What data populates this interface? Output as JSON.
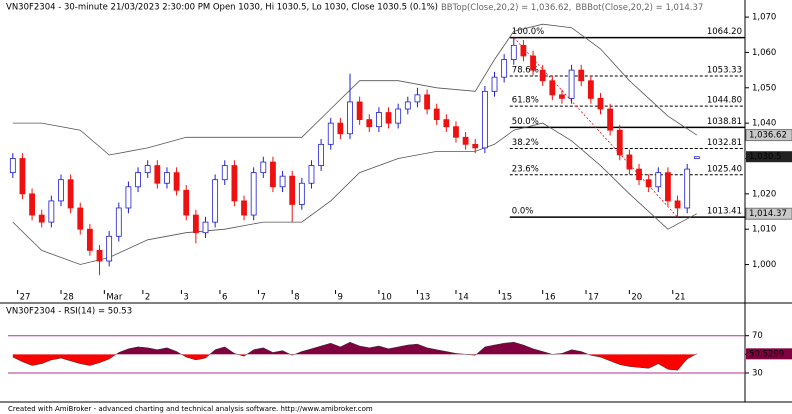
{
  "chart_data": [
    {
      "type": "candlestick",
      "title": "VN30F2304 - 30-minute 21/03/2023 2:30:00 PM Open 1030, Hi 1030.5, Lo 1030, Close 1030.5 (0.1%)",
      "x": [
        0,
        1,
        2,
        3,
        4,
        5,
        6,
        7,
        8,
        9,
        10,
        11,
        12,
        13,
        14,
        15,
        16,
        17,
        18,
        19,
        20,
        21,
        22,
        23,
        24,
        25,
        26,
        27,
        28,
        29,
        30,
        31,
        32,
        33,
        34,
        35,
        36,
        37,
        38,
        39,
        40,
        41,
        42,
        43,
        44,
        45,
        46,
        47,
        48,
        49,
        50,
        51,
        52,
        53,
        54,
        55,
        56,
        57,
        58,
        59,
        60,
        61,
        62,
        63,
        64,
        65,
        66,
        67,
        68,
        69,
        70,
        71
      ],
      "open": [
        1026,
        1030,
        1020,
        1014,
        1012,
        1018,
        1024,
        1016,
        1010,
        1004,
        1001,
        1008,
        1016,
        1022,
        1026,
        1028,
        1023,
        1026,
        1021,
        1014,
        1009,
        1012,
        1024,
        1028,
        1018,
        1014,
        1026,
        1029,
        1022,
        1025,
        1017,
        1023,
        1028,
        1034,
        1040,
        1037,
        1046,
        1041,
        1039,
        1043,
        1040,
        1044,
        1046,
        1048,
        1044,
        1041,
        1039,
        1036,
        1034,
        1033,
        1049,
        1053,
        1058,
        1062,
        1059,
        1055,
        1052,
        1048,
        1047,
        1055,
        1052,
        1047,
        1044,
        1038,
        1031,
        1027,
        1024,
        1022,
        1026,
        1018,
        1016,
        1030
      ],
      "high": [
        1031.5,
        1031.5,
        1021.5,
        1015.5,
        1019.5,
        1025.5,
        1025.5,
        1017.5,
        1011.5,
        1005.5,
        1009.5,
        1017.5,
        1023.5,
        1027.5,
        1029.5,
        1029.5,
        1027.5,
        1027.5,
        1022.5,
        1015.5,
        1013.5,
        1025.5,
        1029.5,
        1029.5,
        1019.5,
        1027.5,
        1030.5,
        1030.5,
        1026.5,
        1026.5,
        1024.5,
        1029.5,
        1035.5,
        1041.5,
        1041.5,
        1054,
        1047.5,
        1042.5,
        1044.5,
        1044.5,
        1045.5,
        1047.5,
        1050,
        1049.5,
        1045.5,
        1042.5,
        1040.5,
        1037.5,
        1035.5,
        1050.5,
        1054.5,
        1059.5,
        1064.2,
        1063.5,
        1060.5,
        1056.5,
        1053.5,
        1049.5,
        1056.5,
        1056.5,
        1053.5,
        1048.5,
        1045.5,
        1039.5,
        1032.5,
        1028.5,
        1025.5,
        1027.5,
        1027.5,
        1019.5,
        1028.5,
        1030.5
      ],
      "low": [
        1024.5,
        1018.5,
        1012.5,
        1010.5,
        1010.5,
        1016.5,
        1014.5,
        1008.5,
        1002.5,
        997,
        999.5,
        1006.5,
        1014.5,
        1020.5,
        1024.5,
        1021.5,
        1021.5,
        1019.5,
        1012.5,
        1006,
        1007.5,
        1010.5,
        1022.5,
        1016.5,
        1012.5,
        1012.5,
        1024.5,
        1020.5,
        1020.5,
        1012,
        1015.5,
        1021.5,
        1026.5,
        1032.5,
        1035.5,
        1035.5,
        1039.5,
        1037.5,
        1037.5,
        1038.5,
        1038.5,
        1042.5,
        1044.5,
        1042.5,
        1039.5,
        1037.5,
        1034.5,
        1032.5,
        1031.5,
        1031.5,
        1047.5,
        1051.5,
        1056.5,
        1057.5,
        1053.5,
        1050.5,
        1046.5,
        1045.5,
        1045.5,
        1050.5,
        1045.5,
        1042.5,
        1036.5,
        1029.5,
        1025.5,
        1022.5,
        1020.5,
        1020.5,
        1016.5,
        1013.41,
        1014.5,
        1030
      ],
      "close": [
        1030,
        1020,
        1014,
        1012,
        1018,
        1024,
        1016,
        1010,
        1004,
        1001,
        1008,
        1016,
        1022,
        1026,
        1028,
        1023,
        1026,
        1021,
        1014,
        1009,
        1012,
        1024,
        1028,
        1018,
        1014,
        1026,
        1029,
        1022,
        1025,
        1017,
        1023,
        1028,
        1034,
        1040,
        1037,
        1046,
        1041,
        1039,
        1043,
        1040,
        1044,
        1046,
        1048,
        1044,
        1041,
        1039,
        1036,
        1034,
        1033,
        1049,
        1053,
        1058,
        1062,
        1059,
        1055,
        1052,
        1048,
        1047,
        1055,
        1052,
        1047,
        1044,
        1038,
        1031,
        1027,
        1024,
        1022,
        1026,
        1018,
        1016,
        1027,
        1030.5
      ],
      "close_last_label": "1,030.5",
      "up_color": "#1f1fd0",
      "down_color": "#ee1111",
      "bands": [
        {
          "name": "BBTop(Close,20,2) = 1,036.62,",
          "color": "#555555",
          "last_label": "1,036.62",
          "x": [
            0,
            3,
            7,
            10,
            14,
            18,
            22,
            26,
            30,
            33,
            36,
            40,
            44,
            48,
            50,
            52,
            55,
            58,
            61,
            64,
            68,
            71
          ],
          "values": [
            1040,
            1040,
            1038,
            1031,
            1033,
            1036,
            1036,
            1036,
            1036,
            1044,
            1052,
            1052,
            1050,
            1049,
            1058,
            1066,
            1068,
            1067,
            1061,
            1052,
            1042,
            1036.62
          ]
        },
        {
          "name": "BBBot(Close,20,2) = 1,014.37",
          "color": "#555555",
          "last_label": "1,014.37",
          "x": [
            0,
            3,
            7,
            10,
            14,
            18,
            22,
            26,
            30,
            33,
            36,
            40,
            44,
            48,
            50,
            52,
            55,
            58,
            61,
            64,
            68,
            71
          ],
          "values": [
            1012,
            1004,
            1000,
            1002,
            1007,
            1009,
            1010,
            1012,
            1012,
            1018,
            1026,
            1030,
            1032,
            1032,
            1034,
            1038,
            1040,
            1035,
            1028,
            1020,
            1010,
            1014.37
          ]
        }
      ],
      "fib_levels": [
        {
          "label": "100.0%",
          "value": 1064.2,
          "value_label": "1064.20",
          "line": "solid"
        },
        {
          "label": "78.6%",
          "value": 1053.33,
          "value_label": "1053.33",
          "line": "dashed"
        },
        {
          "label": "61.8%",
          "value": 1044.8,
          "value_label": "1044.80",
          "line": "dashed"
        },
        {
          "label": "50.0%",
          "value": 1038.81,
          "value_label": "1038.81",
          "line": "solid"
        },
        {
          "label": "38.2%",
          "value": 1032.81,
          "value_label": "1032.81",
          "line": "dashed"
        },
        {
          "label": "23.6%",
          "value": 1025.4,
          "value_label": "1025.40",
          "line": "dashed"
        },
        {
          "label": "0.0%",
          "value": 1013.41,
          "value_label": "1013.41",
          "line": "solid"
        }
      ],
      "fib_start": 52,
      "trend_color": "#ee1111",
      "xlim": [
        -0.5,
        76
      ],
      "xticks": [
        {
          "value": 0.5,
          "label": "27"
        },
        {
          "value": 5,
          "label": "28"
        },
        {
          "value": 9.5,
          "label": "Mar"
        },
        {
          "value": 13.5,
          "label": "2"
        },
        {
          "value": 17.5,
          "label": "3"
        },
        {
          "value": 21.5,
          "label": "6"
        },
        {
          "value": 25.5,
          "label": "7"
        },
        {
          "value": 29,
          "label": "8"
        },
        {
          "value": 33.5,
          "label": "9"
        },
        {
          "value": 38,
          "label": "10"
        },
        {
          "value": 42,
          "label": "13"
        },
        {
          "value": 46,
          "label": "14"
        },
        {
          "value": 50.5,
          "label": "15"
        },
        {
          "value": 55,
          "label": "16"
        },
        {
          "value": 59.5,
          "label": "17"
        },
        {
          "value": 64,
          "label": "20"
        },
        {
          "value": 68.5,
          "label": "21"
        }
      ],
      "ylim": [
        992.8,
        1073.7
      ],
      "yticks": [
        {
          "value": 1000,
          "label": "1,000"
        },
        {
          "value": 1010,
          "label": "1,010"
        },
        {
          "value": 1020,
          "label": "1,020"
        },
        {
          "value": 1030,
          "label": "1,030"
        },
        {
          "value": 1040,
          "label": "1,040"
        },
        {
          "value": 1050,
          "label": "1,050"
        },
        {
          "value": 1060,
          "label": "1,060"
        },
        {
          "value": 1070,
          "label": "1,070"
        }
      ]
    },
    {
      "type": "rsi",
      "title": "VN30F2304 - RSI(14) = 50.53",
      "x": [
        0,
        1,
        2,
        3,
        4,
        5,
        6,
        7,
        8,
        9,
        10,
        11,
        12,
        13,
        14,
        15,
        16,
        17,
        18,
        19,
        20,
        21,
        22,
        23,
        24,
        25,
        26,
        27,
        28,
        29,
        30,
        31,
        32,
        33,
        34,
        35,
        36,
        37,
        38,
        39,
        40,
        41,
        42,
        43,
        44,
        45,
        46,
        47,
        48,
        49,
        50,
        51,
        52,
        53,
        54,
        55,
        56,
        57,
        58,
        59,
        60,
        61,
        62,
        63,
        64,
        65,
        66,
        67,
        68,
        69,
        70,
        71
      ],
      "values": [
        47,
        42,
        38,
        40,
        44,
        46,
        43,
        40,
        38,
        41,
        45,
        52,
        56,
        58,
        57,
        55,
        57,
        53,
        47,
        44,
        46,
        55,
        58,
        51,
        48,
        55,
        57,
        52,
        54,
        49,
        53,
        56,
        59,
        62,
        58,
        63,
        59,
        57,
        59,
        56,
        58,
        60,
        61,
        57,
        55,
        53,
        51,
        50,
        49,
        58,
        60,
        62,
        63,
        60,
        56,
        53,
        50,
        51,
        55,
        53,
        49,
        47,
        43,
        39,
        37,
        36,
        35,
        40,
        34,
        33,
        45,
        50.5299
      ],
      "last_label": "50.5299",
      "above_color": "#800040",
      "below_color": "#ff0000",
      "level_color": "#b0309a",
      "levels": [
        70,
        30
      ],
      "midline": 50,
      "xlim": [
        -0.5,
        76
      ],
      "ylim": [
        1,
        89
      ],
      "yticks": [
        70,
        50,
        30
      ]
    }
  ],
  "footer": "Created with AmiBroker - advanced charting and technical analysis software. http://www.amibroker.com"
}
